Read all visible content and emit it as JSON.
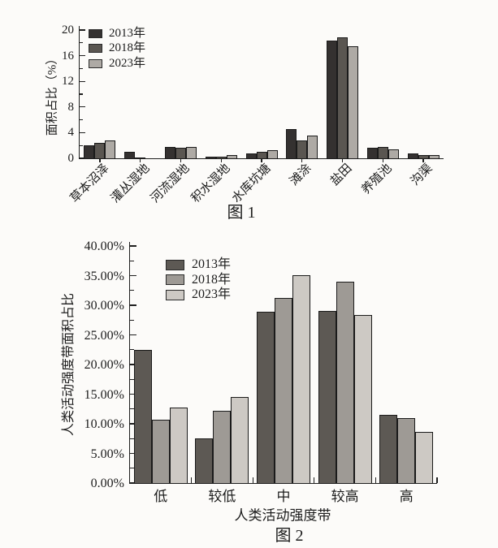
{
  "page": {
    "background": "#fcfbf9"
  },
  "chart_data": [
    {
      "id": "fig1",
      "type": "bar",
      "title": "图 1",
      "ylabel": "面积占比（%）",
      "xlabel": "",
      "ylim": [
        0,
        20
      ],
      "grid": false,
      "legend_position": "top-left-inside",
      "ytick_values": [
        0,
        4,
        8,
        12,
        16,
        20
      ],
      "ytick_labels": [
        "0",
        "4",
        "8",
        "12",
        "16",
        "20"
      ],
      "ytick_minor_values": [
        2,
        6,
        10,
        14,
        18
      ],
      "x_tick_label_rotation_deg": -45,
      "categories": [
        "草本沼泽",
        "灌丛湿地",
        "河流湿地",
        "积水湿地",
        "水库坑塘",
        "滩涂",
        "盐田",
        "养殖池",
        "沟渠"
      ],
      "series": [
        {
          "name": "2013年",
          "color": "#343130",
          "values": [
            2.0,
            1.0,
            1.8,
            0.3,
            0.8,
            4.5,
            18.4,
            1.6,
            0.7
          ]
        },
        {
          "name": "2018年",
          "color": "#5a5651",
          "values": [
            2.4,
            0.1,
            1.7,
            0.2,
            1.0,
            2.8,
            18.9,
            1.8,
            0.5
          ]
        },
        {
          "name": "2023年",
          "color": "#aeaaa5",
          "values": [
            2.8,
            0.0,
            1.8,
            0.5,
            1.3,
            3.6,
            17.5,
            1.4,
            0.55
          ]
        }
      ]
    },
    {
      "id": "fig2",
      "type": "bar",
      "title": "图 2",
      "ylabel": "人类活动强度带面积占比",
      "xlabel": "人类活动强度带",
      "ylim": [
        0,
        40
      ],
      "grid": false,
      "legend_position": "top-left-inside",
      "ytick_values": [
        0,
        5,
        10,
        15,
        20,
        25,
        30,
        35,
        40
      ],
      "ytick_labels": [
        "0.00%",
        "5.00%",
        "10.00%",
        "15.00%",
        "20.00%",
        "25.00%",
        "30.00%",
        "35.00%",
        "40.00%"
      ],
      "ytick_minor_values": [
        2.5,
        7.5,
        12.5,
        17.5,
        22.5,
        27.5,
        32.5,
        37.5
      ],
      "x_tick_label_rotation_deg": 0,
      "categories": [
        "低",
        "较低",
        "中",
        "较高",
        "高"
      ],
      "series": [
        {
          "name": "2013年",
          "color": "#5d5954",
          "values": [
            22.5,
            7.5,
            28.9,
            29.0,
            11.5
          ]
        },
        {
          "name": "2018年",
          "color": "#9e9a95",
          "values": [
            10.7,
            12.2,
            31.3,
            34.0,
            11.0
          ]
        },
        {
          "name": "2023年",
          "color": "#cdc9c4",
          "values": [
            12.8,
            14.5,
            35.1,
            28.3,
            8.6
          ]
        }
      ]
    }
  ]
}
